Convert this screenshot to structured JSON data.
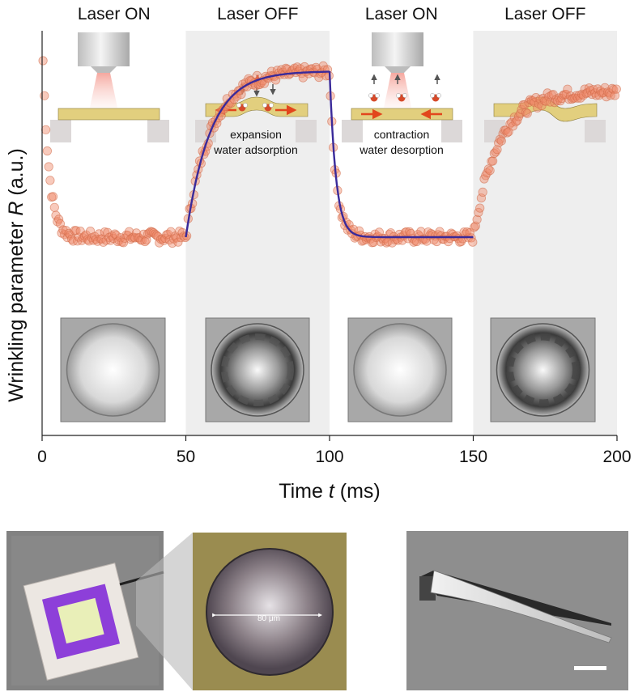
{
  "chart_data": {
    "type": "scatter",
    "xlabel_prefix": "Time ",
    "xlabel_var": "t",
    "xlabel_suffix": " (ms)",
    "ylabel_prefix": "Wrinkling parameter ",
    "ylabel_var": "R",
    "ylabel_suffix": " (a.u.)",
    "xlim": [
      0,
      200
    ],
    "ylim": [
      0,
      1
    ],
    "xticks": [
      "0",
      "50",
      "100",
      "150",
      "200"
    ],
    "yticks": [],
    "phases": [
      {
        "label": "Laser ON",
        "start": 0,
        "end": 50,
        "shaded": false
      },
      {
        "label": "Laser OFF",
        "start": 50,
        "end": 100,
        "shaded": true
      },
      {
        "label": "Laser ON",
        "start": 100,
        "end": 150,
        "shaded": false
      },
      {
        "label": "Laser OFF",
        "start": 150,
        "end": 200,
        "shaded": true
      }
    ],
    "annotations": {
      "expansion": "expansion",
      "water_adsorption": "water adsorption",
      "contraction": "contraction",
      "water_desorption": "water desorption"
    },
    "series": [
      {
        "marker_color": "#f08a6a",
        "fit_color": "#3a2a9a",
        "segments": [
          {
            "t0": 0,
            "t1": 50,
            "start": 0.99,
            "end": 0.49,
            "tau": 2.2,
            "fit": false
          },
          {
            "t0": 50,
            "t1": 100,
            "start": 0.49,
            "end": 0.9,
            "tau": 8.5,
            "fit": true
          },
          {
            "t0": 100,
            "t1": 150,
            "start": 0.9,
            "end": 0.49,
            "tau": 2.2,
            "fit": true
          },
          {
            "t0": 150,
            "t1": 200,
            "start": 0.49,
            "end": 0.85,
            "tau": 8.5,
            "fit": false
          }
        ]
      }
    ]
  },
  "photo_labels": {
    "scale": "80 μm"
  },
  "colors": {
    "shade": "#eeeeee",
    "film": "#e2cf7e",
    "support": "#dcd8d8",
    "arrow": "#e2461c",
    "axis": "#222222"
  }
}
